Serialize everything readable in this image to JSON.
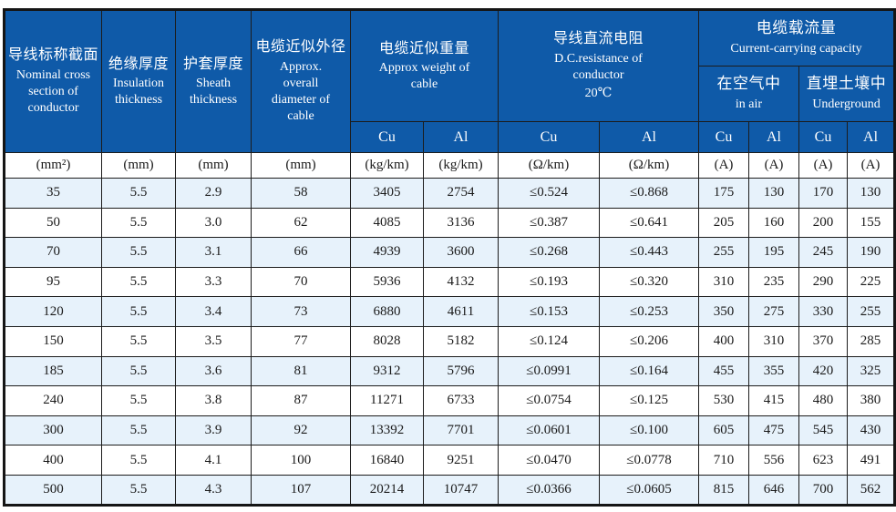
{
  "colors": {
    "header_bg": "#0f5aa8",
    "header_text": "#ffffff",
    "row_alt_bg": "#e7f2fb",
    "row_bg": "#ffffff",
    "border": "#1c1c1c",
    "body_text": "#1a1a1a"
  },
  "columns": {
    "nominal": {
      "zh": "导线标称截面",
      "en": "Nominal cross section of conductor"
    },
    "insulation": {
      "zh": "绝缘厚度",
      "en": "Insulation thickness"
    },
    "sheath": {
      "zh": "护套厚度",
      "en": "Sheath thickness"
    },
    "diameter": {
      "zh": "电缆近似外径",
      "en": "Approx. overall diameter of cable"
    }
  },
  "groups": {
    "weight": {
      "zh": "电缆近似重量",
      "en": "Approx weight of cable"
    },
    "resistance": {
      "zh": "导线直流电阻",
      "en": "D.C.resistance of conductor",
      "temp": "20℃"
    },
    "capacity": {
      "zh": "电缆载流量",
      "en": "Current-carrying capacity"
    },
    "in_air": {
      "zh": "在空气中",
      "en": "in air"
    },
    "underground": {
      "zh": "直埋土壤中",
      "en": "Underground"
    }
  },
  "conductor_headers": [
    "Cu",
    "Al",
    "Cu",
    "Al",
    "Cu",
    "Al",
    "Cu",
    "Al"
  ],
  "units": [
    "(mm²)",
    "(mm)",
    "(mm)",
    "(mm)",
    "(kg/km)",
    "(kg/km)",
    "(Ω/km)",
    "(Ω/km)",
    "(A)",
    "(A)",
    "(A)",
    "(A)"
  ],
  "rows": [
    [
      "35",
      "5.5",
      "2.9",
      "58",
      "3405",
      "2754",
      "≤0.524",
      "≤0.868",
      "175",
      "130",
      "170",
      "130"
    ],
    [
      "50",
      "5.5",
      "3.0",
      "62",
      "4085",
      "3136",
      "≤0.387",
      "≤0.641",
      "205",
      "160",
      "200",
      "155"
    ],
    [
      "70",
      "5.5",
      "3.1",
      "66",
      "4939",
      "3600",
      "≤0.268",
      "≤0.443",
      "255",
      "195",
      "245",
      "190"
    ],
    [
      "95",
      "5.5",
      "3.3",
      "70",
      "5936",
      "4132",
      "≤0.193",
      "≤0.320",
      "310",
      "235",
      "290",
      "225"
    ],
    [
      "120",
      "5.5",
      "3.4",
      "73",
      "6880",
      "4611",
      "≤0.153",
      "≤0.253",
      "350",
      "275",
      "330",
      "255"
    ],
    [
      "150",
      "5.5",
      "3.5",
      "77",
      "8028",
      "5182",
      "≤0.124",
      "≤0.206",
      "400",
      "310",
      "370",
      "285"
    ],
    [
      "185",
      "5.5",
      "3.6",
      "81",
      "9312",
      "5796",
      "≤0.0991",
      "≤0.164",
      "455",
      "355",
      "420",
      "325"
    ],
    [
      "240",
      "5.5",
      "3.8",
      "87",
      "11271",
      "6733",
      "≤0.0754",
      "≤0.125",
      "530",
      "415",
      "480",
      "380"
    ],
    [
      "300",
      "5.5",
      "3.9",
      "92",
      "13392",
      "7701",
      "≤0.0601",
      "≤0.100",
      "605",
      "475",
      "545",
      "430"
    ],
    [
      "400",
      "5.5",
      "4.1",
      "100",
      "16840",
      "9251",
      "≤0.0470",
      "≤0.0778",
      "710",
      "556",
      "623",
      "491"
    ],
    [
      "500",
      "5.5",
      "4.3",
      "107",
      "20214",
      "10747",
      "≤0.0366",
      "≤0.0605",
      "815",
      "646",
      "700",
      "562"
    ]
  ]
}
